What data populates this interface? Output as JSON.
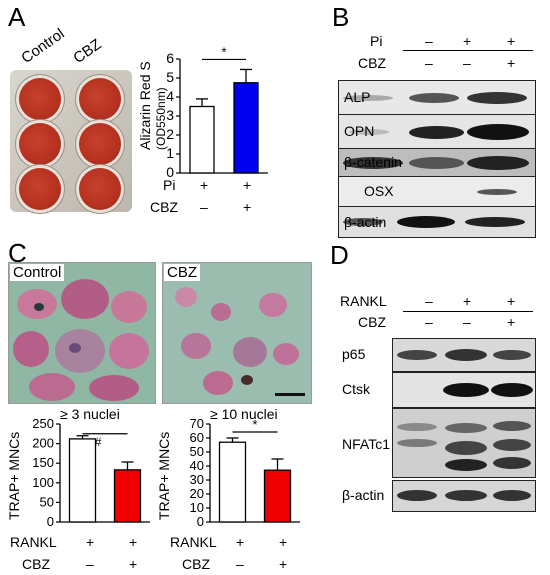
{
  "panels": {
    "A": {
      "letter": "A",
      "plate_labels": [
        "Control",
        "CBZ"
      ],
      "y_label_line1": "Alizarin Red S",
      "y_label_line2": "(OD550nm)",
      "significance": "*",
      "conditions": [
        {
          "name": "Pi",
          "marks": [
            "+",
            "+"
          ]
        },
        {
          "name": "CBZ",
          "marks": [
            "–",
            "+"
          ]
        }
      ]
    },
    "B": {
      "letter": "B",
      "conditions": [
        {
          "name": "Pi",
          "marks": [
            "–",
            "+",
            "+"
          ]
        },
        {
          "name": "CBZ",
          "marks": [
            "–",
            "–",
            "+"
          ]
        }
      ],
      "blots": [
        "ALP",
        "OPN",
        "β-catenin",
        "OSX",
        "β-actin"
      ]
    },
    "C": {
      "letter": "C",
      "image_labels": [
        "Control",
        "CBZ"
      ],
      "left_header": "≥  3 nuclei",
      "right_header": "≥  10 nuclei",
      "hash": "#",
      "significance": "*",
      "y_label": "TRAP+ MNCs",
      "conditions": [
        {
          "name": "RANKL",
          "marks": [
            "+",
            "+"
          ]
        },
        {
          "name": "CBZ",
          "marks": [
            "–",
            "+"
          ]
        }
      ]
    },
    "D": {
      "letter": "D",
      "conditions": [
        {
          "name": "RANKL",
          "marks": [
            "–",
            "+",
            "+"
          ]
        },
        {
          "name": "CBZ",
          "marks": [
            "–",
            "–",
            "+"
          ]
        }
      ],
      "blots": [
        "p65",
        "Ctsk",
        "NFATc1",
        "β-actin"
      ]
    }
  },
  "chart_data": [
    {
      "type": "bar",
      "panel": "A",
      "categories": [
        "Control",
        "CBZ"
      ],
      "values": [
        3.5,
        4.75
      ],
      "errors": [
        0.4,
        0.7
      ],
      "colors": [
        "#ffffff",
        "#0000ee"
      ],
      "ylabel": "Alizarin Red S (OD550nm)",
      "ylim": [
        0,
        6
      ],
      "yticks": [
        0,
        1,
        2,
        3,
        4,
        5,
        6
      ]
    },
    {
      "type": "bar",
      "panel": "C-left",
      "title": "≥ 3 nuclei",
      "categories": [
        "Control",
        "CBZ"
      ],
      "values": [
        212,
        133
      ],
      "errors": [
        8,
        20
      ],
      "colors": [
        "#ffffff",
        "#ee0000"
      ],
      "ylabel": "TRAP+ MNCs",
      "ylim": [
        0,
        250
      ],
      "yticks": [
        0,
        50,
        100,
        150,
        200,
        250
      ]
    },
    {
      "type": "bar",
      "panel": "C-right",
      "title": "≥ 10 nuclei",
      "categories": [
        "Control",
        "CBZ"
      ],
      "values": [
        57,
        37
      ],
      "errors": [
        3,
        8
      ],
      "colors": [
        "#ffffff",
        "#ee0000"
      ],
      "ylabel": "TRAP+ MNCs",
      "ylim": [
        0,
        70
      ],
      "yticks": [
        0,
        10,
        20,
        30,
        40,
        50,
        60,
        70
      ]
    }
  ]
}
